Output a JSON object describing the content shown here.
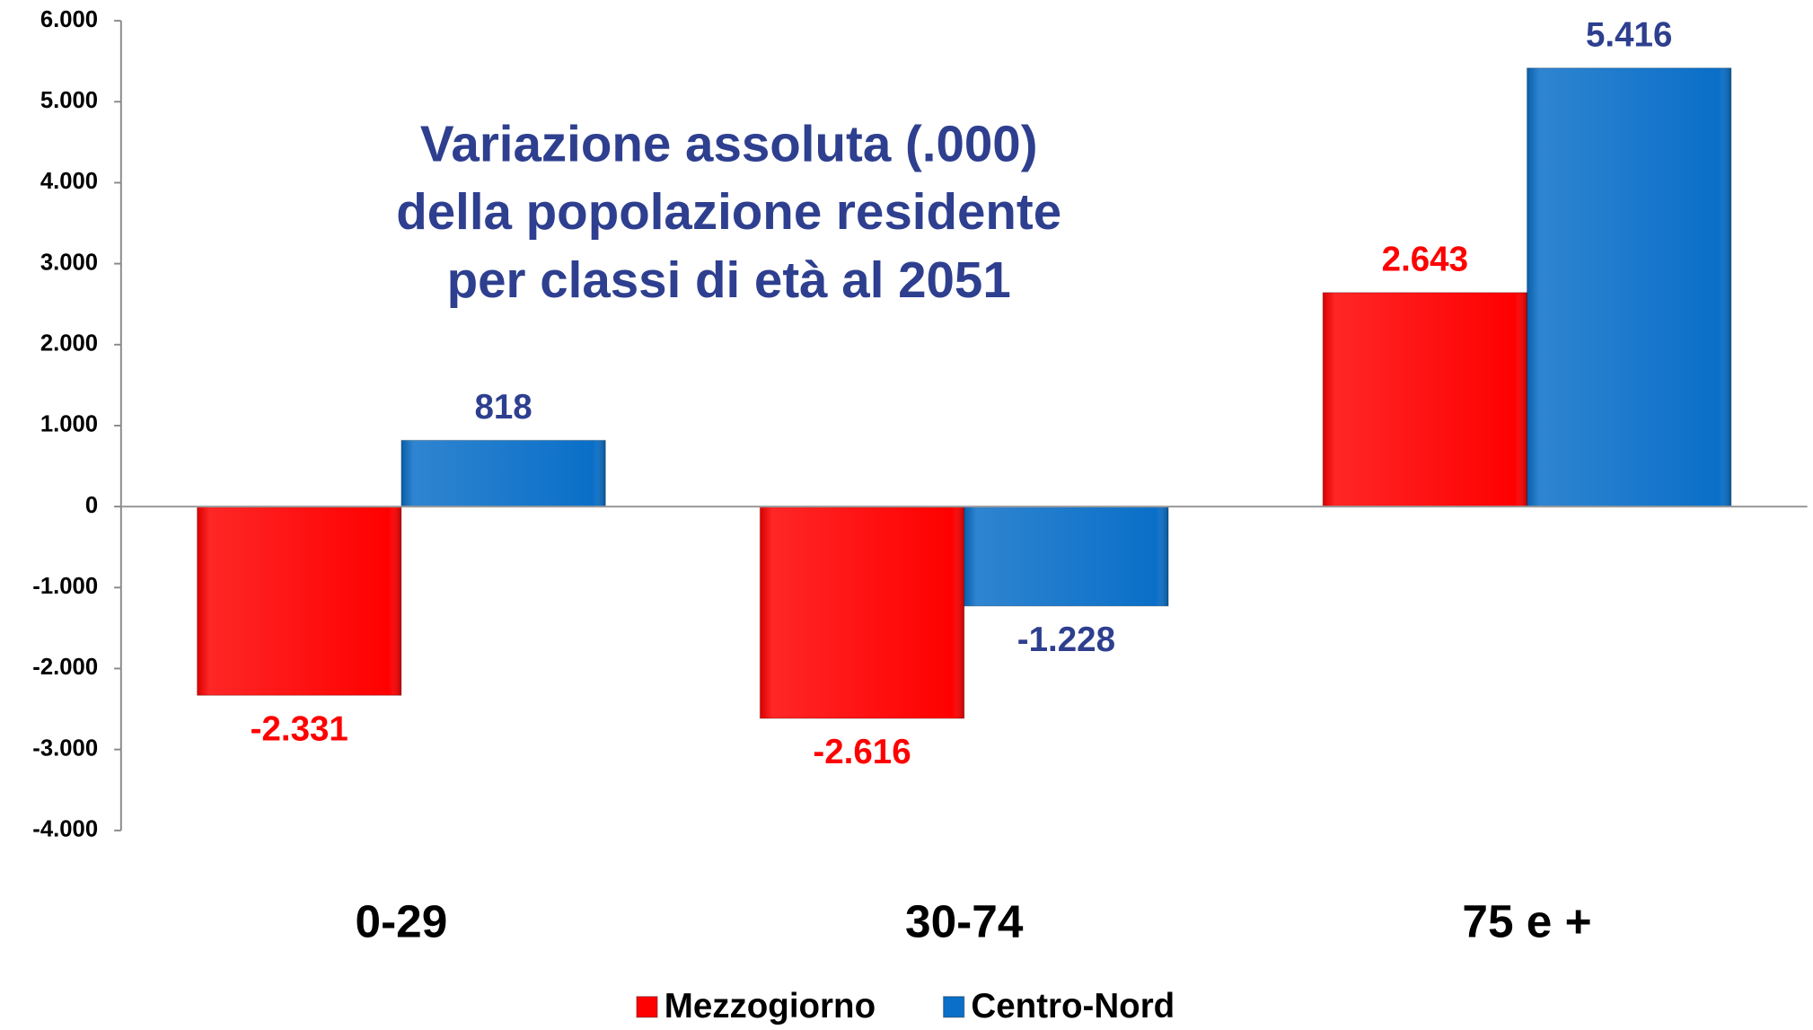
{
  "chart_data": {
    "type": "bar",
    "title": [
      "Variazione assoluta (.000)",
      "della popolazione residente",
      "per classi di età al 2051"
    ],
    "title_color": "#2e3f8f",
    "categories": [
      "0-29",
      "30-74",
      "75 e +"
    ],
    "series": [
      {
        "name": "Mezzogiorno",
        "color": "#ff0000",
        "label_color": "#ff0000",
        "values": [
          -2331,
          -2616,
          2643
        ],
        "value_labels": [
          "-2.331",
          "-2.616",
          "2.643"
        ]
      },
      {
        "name": "Centro-Nord",
        "color": "#0a6fc8",
        "label_color": "#2e3f8f",
        "values": [
          818,
          -1228,
          5416
        ],
        "value_labels": [
          "818",
          "-1.228",
          "5.416"
        ]
      }
    ],
    "ylim": [
      -4000,
      6000
    ],
    "yticks": [
      {
        "value": -4000,
        "label": "-4.000"
      },
      {
        "value": -3000,
        "label": "-3.000"
      },
      {
        "value": -2000,
        "label": "-2.000"
      },
      {
        "value": -1000,
        "label": "-1.000"
      },
      0,
      {
        "value": 1000,
        "label": "1.000"
      },
      {
        "value": 2000,
        "label": "2.000"
      },
      {
        "value": 3000,
        "label": "3.000"
      },
      {
        "value": 4000,
        "label": "4.000"
      },
      {
        "value": 5000,
        "label": "5.000"
      },
      {
        "value": 6000,
        "label": "6.000"
      }
    ],
    "grid": false,
    "legend": "bottom"
  }
}
